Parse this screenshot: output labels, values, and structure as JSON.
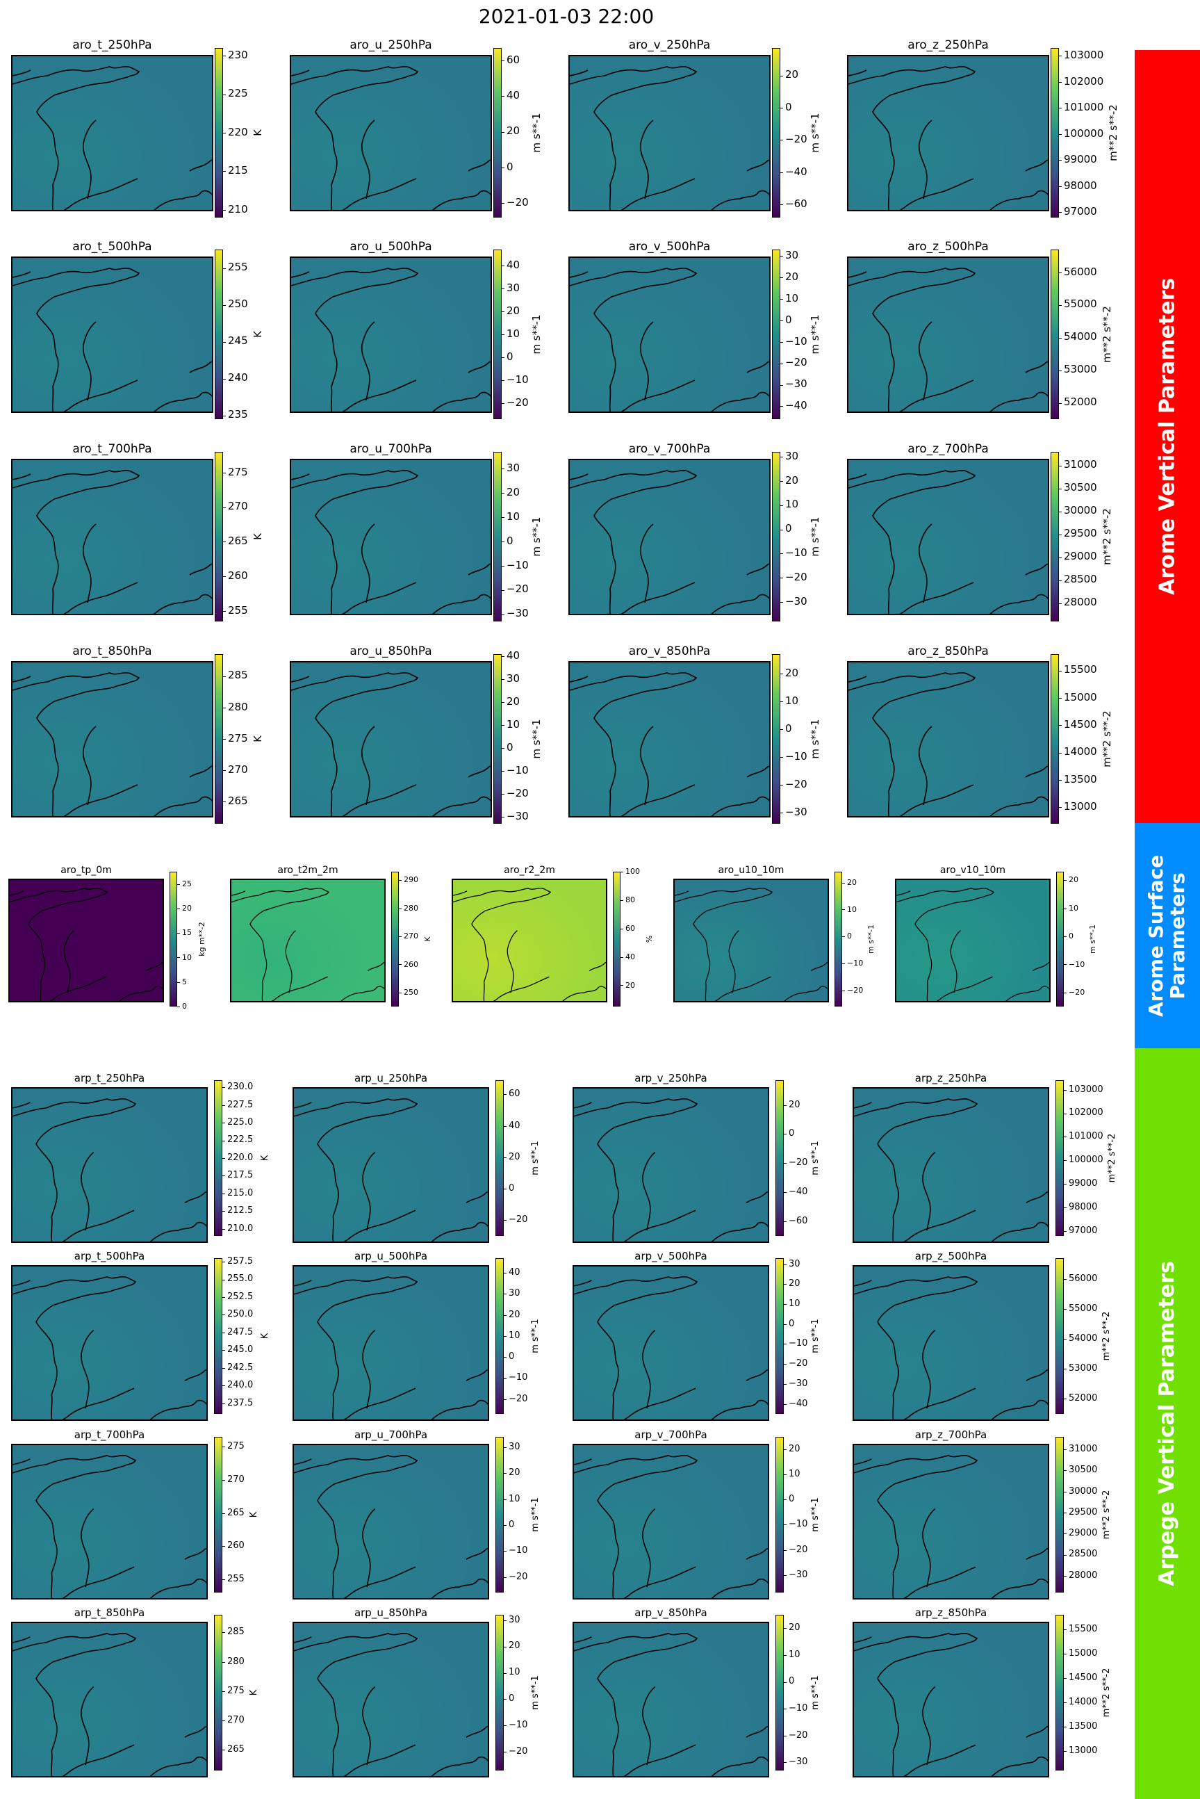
{
  "figure": {
    "title": "2021-01-03 22:00"
  },
  "colors": {
    "arome_vertical": "#ff0000",
    "arome_surface": "#008cff",
    "arpege_vertical": "#70e000",
    "colormap": "viridis",
    "coastline": "#000000"
  },
  "sections": {
    "arome_vertical": {
      "label": "Arome Vertical Parameters"
    },
    "arome_surface": {
      "label": "Arome Surface\nParameters"
    },
    "arpege_vertical": {
      "label": "Arpege Vertical Parameters"
    }
  },
  "chart_data": [
    {
      "type": "heatmap",
      "title": "aro_t_250hPa",
      "unit": "K",
      "ticks": [
        "210",
        "215",
        "220",
        "225",
        "230"
      ],
      "vmin": 209,
      "vmax": 231
    },
    {
      "type": "heatmap",
      "title": "aro_u_250hPa",
      "unit": "m s**-1",
      "ticks": [
        "−20",
        "0",
        "20",
        "40",
        "60"
      ],
      "vmin": -28,
      "vmax": 67
    },
    {
      "type": "heatmap",
      "title": "aro_v_250hPa",
      "unit": "m s**-1",
      "ticks": [
        "−60",
        "−40",
        "−20",
        "0",
        "20"
      ],
      "vmin": -68,
      "vmax": 37
    },
    {
      "type": "heatmap",
      "title": "aro_z_250hPa",
      "unit": "m**2 s**-2",
      "ticks": [
        "97000",
        "98000",
        "99000",
        "100000",
        "101000",
        "102000",
        "103000"
      ],
      "vmin": 96800,
      "vmax": 103300
    },
    {
      "type": "heatmap",
      "title": "aro_t_500hPa",
      "unit": "K",
      "ticks": [
        "235",
        "240",
        "245",
        "250",
        "255"
      ],
      "vmin": 234.5,
      "vmax": 257.5
    },
    {
      "type": "heatmap",
      "title": "aro_u_500hPa",
      "unit": "m s**-1",
      "ticks": [
        "−20",
        "−10",
        "0",
        "10",
        "20",
        "30",
        "40"
      ],
      "vmin": -27,
      "vmax": 47
    },
    {
      "type": "heatmap",
      "title": "aro_v_500hPa",
      "unit": "m s**-1",
      "ticks": [
        "−40",
        "−30",
        "−20",
        "−10",
        "0",
        "10",
        "20",
        "30"
      ],
      "vmin": -46,
      "vmax": 33
    },
    {
      "type": "heatmap",
      "title": "aro_z_500hPa",
      "unit": "m**2 s**-2",
      "ticks": [
        "52000",
        "53000",
        "54000",
        "55000",
        "56000"
      ],
      "vmin": 51500,
      "vmax": 56700
    },
    {
      "type": "heatmap",
      "title": "aro_t_700hPa",
      "unit": "K",
      "ticks": [
        "255",
        "260",
        "265",
        "270",
        "275"
      ],
      "vmin": 253.5,
      "vmax": 278
    },
    {
      "type": "heatmap",
      "title": "aro_u_700hPa",
      "unit": "m s**-1",
      "ticks": [
        "−30",
        "−20",
        "−10",
        "0",
        "10",
        "20",
        "30"
      ],
      "vmin": -33,
      "vmax": 37
    },
    {
      "type": "heatmap",
      "title": "aro_v_700hPa",
      "unit": "m s**-1",
      "ticks": [
        "−30",
        "−20",
        "−10",
        "0",
        "10",
        "20",
        "30"
      ],
      "vmin": -38,
      "vmax": 32
    },
    {
      "type": "heatmap",
      "title": "aro_z_700hPa",
      "unit": "m**2 s**-2",
      "ticks": [
        "28000",
        "28500",
        "29000",
        "29500",
        "30000",
        "30500",
        "31000"
      ],
      "vmin": 27600,
      "vmax": 31300
    },
    {
      "type": "heatmap",
      "title": "aro_t_850hPa",
      "unit": "K",
      "ticks": [
        "265",
        "270",
        "275",
        "280",
        "285"
      ],
      "vmin": 261.5,
      "vmax": 288.5
    },
    {
      "type": "heatmap",
      "title": "aro_u_850hPa",
      "unit": "m s**-1",
      "ticks": [
        "−30",
        "−20",
        "−10",
        "0",
        "10",
        "20",
        "30",
        "40"
      ],
      "vmin": -33,
      "vmax": 41
    },
    {
      "type": "heatmap",
      "title": "aro_v_850hPa",
      "unit": "m s**-1",
      "ticks": [
        "−30",
        "−20",
        "−10",
        "0",
        "10",
        "20"
      ],
      "vmin": -34,
      "vmax": 27
    },
    {
      "type": "heatmap",
      "title": "aro_z_850hPa",
      "unit": "m**2 s**-2",
      "ticks": [
        "13000",
        "13500",
        "14000",
        "14500",
        "15000",
        "15500"
      ],
      "vmin": 12700,
      "vmax": 15800
    },
    {
      "type": "heatmap",
      "title": "aro_tp_0m",
      "unit": "kg m**-2",
      "ticks": [
        "0",
        "5",
        "10",
        "15",
        "20",
        "25"
      ],
      "vmin": 0,
      "vmax": 27.5
    },
    {
      "type": "heatmap",
      "title": "aro_t2m_2m",
      "unit": "K",
      "ticks": [
        "250",
        "260",
        "270",
        "280",
        "290"
      ],
      "vmin": 245,
      "vmax": 293
    },
    {
      "type": "heatmap",
      "title": "aro_r2_2m",
      "unit": "%",
      "ticks": [
        "20",
        "40",
        "60",
        "80",
        "100"
      ],
      "vmin": 5,
      "vmax": 100
    },
    {
      "type": "heatmap",
      "title": "aro_u10_10m",
      "unit": "m s**-1",
      "ticks": [
        "−20",
        "−10",
        "0",
        "10",
        "20"
      ],
      "vmin": -26,
      "vmax": 24
    },
    {
      "type": "heatmap",
      "title": "aro_v10_10m",
      "unit": "m s**-1",
      "ticks": [
        "−20",
        "−10",
        "0",
        "10",
        "20"
      ],
      "vmin": -25,
      "vmax": 23
    },
    {
      "type": "heatmap",
      "title": "arp_t_250hPa",
      "unit": "K",
      "ticks": [
        "210.0",
        "212.5",
        "215.0",
        "217.5",
        "220.0",
        "222.5",
        "225.0",
        "227.5",
        "230.0"
      ],
      "vmin": 209,
      "vmax": 231
    },
    {
      "type": "heatmap",
      "title": "arp_u_250hPa",
      "unit": "m s**-1",
      "ticks": [
        "−20",
        "0",
        "20",
        "40",
        "60"
      ],
      "vmin": -30,
      "vmax": 69
    },
    {
      "type": "heatmap",
      "title": "arp_v_250hPa",
      "unit": "m s**-1",
      "ticks": [
        "−60",
        "−40",
        "−20",
        "0",
        "20"
      ],
      "vmin": -70,
      "vmax": 37
    },
    {
      "type": "heatmap",
      "title": "arp_z_250hPa",
      "unit": "m**2 s**-2",
      "ticks": [
        "97000",
        "98000",
        "99000",
        "100000",
        "101000",
        "102000",
        "103000"
      ],
      "vmin": 96800,
      "vmax": 103400
    },
    {
      "type": "heatmap",
      "title": "arp_t_500hPa",
      "unit": "K",
      "ticks": [
        "237.5",
        "240.0",
        "242.5",
        "245.0",
        "247.5",
        "250.0",
        "252.5",
        "255.0",
        "257.5"
      ],
      "vmin": 236,
      "vmax": 258
    },
    {
      "type": "heatmap",
      "title": "arp_u_500hPa",
      "unit": "m s**-1",
      "ticks": [
        "−20",
        "−10",
        "0",
        "10",
        "20",
        "30",
        "40"
      ],
      "vmin": -27,
      "vmax": 47
    },
    {
      "type": "heatmap",
      "title": "arp_v_500hPa",
      "unit": "m s**-1",
      "ticks": [
        "−40",
        "−30",
        "−20",
        "−10",
        "0",
        "10",
        "20",
        "30"
      ],
      "vmin": -45,
      "vmax": 33
    },
    {
      "type": "heatmap",
      "title": "arp_z_500hPa",
      "unit": "m**2 s**-2",
      "ticks": [
        "52000",
        "53000",
        "54000",
        "55000",
        "56000"
      ],
      "vmin": 51500,
      "vmax": 56700
    },
    {
      "type": "heatmap",
      "title": "arp_t_700hPa",
      "unit": "K",
      "ticks": [
        "255",
        "260",
        "265",
        "270",
        "275"
      ],
      "vmin": 253,
      "vmax": 276.5
    },
    {
      "type": "heatmap",
      "title": "arp_u_700hPa",
      "unit": "m s**-1",
      "ticks": [
        "−20",
        "−10",
        "0",
        "10",
        "20",
        "30"
      ],
      "vmin": -26,
      "vmax": 34
    },
    {
      "type": "heatmap",
      "title": "arp_v_700hPa",
      "unit": "m s**-1",
      "ticks": [
        "−30",
        "−20",
        "−10",
        "0",
        "10",
        "20"
      ],
      "vmin": -37,
      "vmax": 25
    },
    {
      "type": "heatmap",
      "title": "arp_z_700hPa",
      "unit": "m**2 s**-2",
      "ticks": [
        "28000",
        "28500",
        "29000",
        "29500",
        "30000",
        "30500",
        "31000"
      ],
      "vmin": 27600,
      "vmax": 31300
    },
    {
      "type": "heatmap",
      "title": "arp_t_850hPa",
      "unit": "K",
      "ticks": [
        "265",
        "270",
        "275",
        "280",
        "285"
      ],
      "vmin": 261.5,
      "vmax": 288
    },
    {
      "type": "heatmap",
      "title": "arp_u_850hPa",
      "unit": "m s**-1",
      "ticks": [
        "−20",
        "−10",
        "0",
        "10",
        "20",
        "30"
      ],
      "vmin": -27,
      "vmax": 32
    },
    {
      "type": "heatmap",
      "title": "arp_v_850hPa",
      "unit": "m s**-1",
      "ticks": [
        "−30",
        "−20",
        "−10",
        "0",
        "10",
        "20"
      ],
      "vmin": -33,
      "vmax": 25
    },
    {
      "type": "heatmap",
      "title": "arp_z_850hPa",
      "unit": "m**2 s**-2",
      "ticks": [
        "13000",
        "13500",
        "14000",
        "14500",
        "15000",
        "15500"
      ],
      "vmin": 12600,
      "vmax": 15800
    }
  ]
}
